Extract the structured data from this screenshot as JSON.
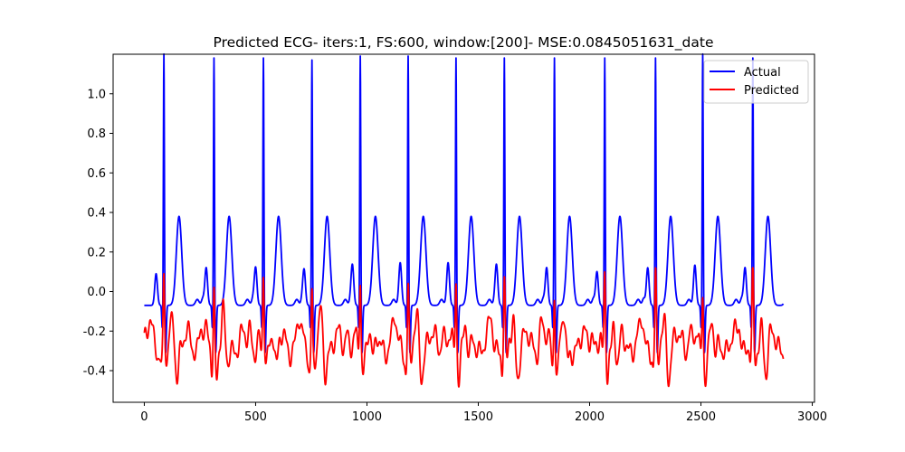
{
  "chart_data": {
    "type": "line",
    "title": "Predicted ECG- iters:1, FS:600, window:[200]- MSE:0.0845051631_date",
    "xlabel": "",
    "ylabel": "",
    "xlim": [
      -140,
      3010
    ],
    "ylim": [
      -0.56,
      1.2
    ],
    "xticks": [
      0,
      500,
      1000,
      1500,
      2000,
      2500,
      3000
    ],
    "yticks": [
      -0.4,
      -0.2,
      0.0,
      0.2,
      0.4,
      0.6,
      0.8,
      1.0
    ],
    "xtick_labels": [
      "0",
      "500",
      "1000",
      "1500",
      "2000",
      "2500",
      "3000"
    ],
    "ytick_labels": [
      "-0.4",
      "-0.2",
      "0.0",
      "0.2",
      "0.4",
      "0.6",
      "0.8",
      "1.0"
    ],
    "grid": false,
    "legend_position": "upper right",
    "x_range": [
      0,
      2870
    ],
    "series": [
      {
        "name": "Actual",
        "color": "#0000ff",
        "baseline": -0.07,
        "beats": [
          {
            "r_x": 88,
            "r_peak": 1.09,
            "p_peak": 0.09,
            "t_peak": 0.38
          },
          {
            "r_x": 313,
            "r_peak": 1.07,
            "p_peak": 0.12,
            "t_peak": 0.38
          },
          {
            "r_x": 535,
            "r_peak": 1.07,
            "p_peak": 0.12,
            "t_peak": 0.38
          },
          {
            "r_x": 753,
            "r_peak": 1.06,
            "p_peak": 0.1,
            "t_peak": 0.38
          },
          {
            "r_x": 970,
            "r_peak": 1.08,
            "p_peak": 0.12,
            "t_peak": 0.38
          },
          {
            "r_x": 1185,
            "r_peak": 1.08,
            "p_peak": 0.12,
            "t_peak": 0.38
          },
          {
            "r_x": 1400,
            "r_peak": 1.07,
            "p_peak": 0.12,
            "t_peak": 0.38
          },
          {
            "r_x": 1617,
            "r_peak": 1.07,
            "p_peak": 0.12,
            "t_peak": 0.38
          },
          {
            "r_x": 1842,
            "r_peak": 1.07,
            "p_peak": 0.12,
            "t_peak": 0.38
          },
          {
            "r_x": 2068,
            "r_peak": 1.07,
            "p_peak": 0.1,
            "t_peak": 0.38
          },
          {
            "r_x": 2296,
            "r_peak": 1.07,
            "p_peak": 0.12,
            "t_peak": 0.38
          },
          {
            "r_x": 2508,
            "r_peak": 1.09,
            "p_peak": 0.1,
            "t_peak": 0.38
          },
          {
            "r_x": 2733,
            "r_peak": 1.07,
            "p_peak": 0.12,
            "t_peak": 0.38
          }
        ]
      },
      {
        "name": "Predicted",
        "color": "#ff0000",
        "baseline": -0.26,
        "min_value": -0.49,
        "max_value": 0.12,
        "peak_x": [
          88,
          313,
          535,
          753,
          970,
          1185,
          1400,
          1617,
          1842,
          2068,
          2296,
          2508,
          2733
        ]
      }
    ]
  }
}
